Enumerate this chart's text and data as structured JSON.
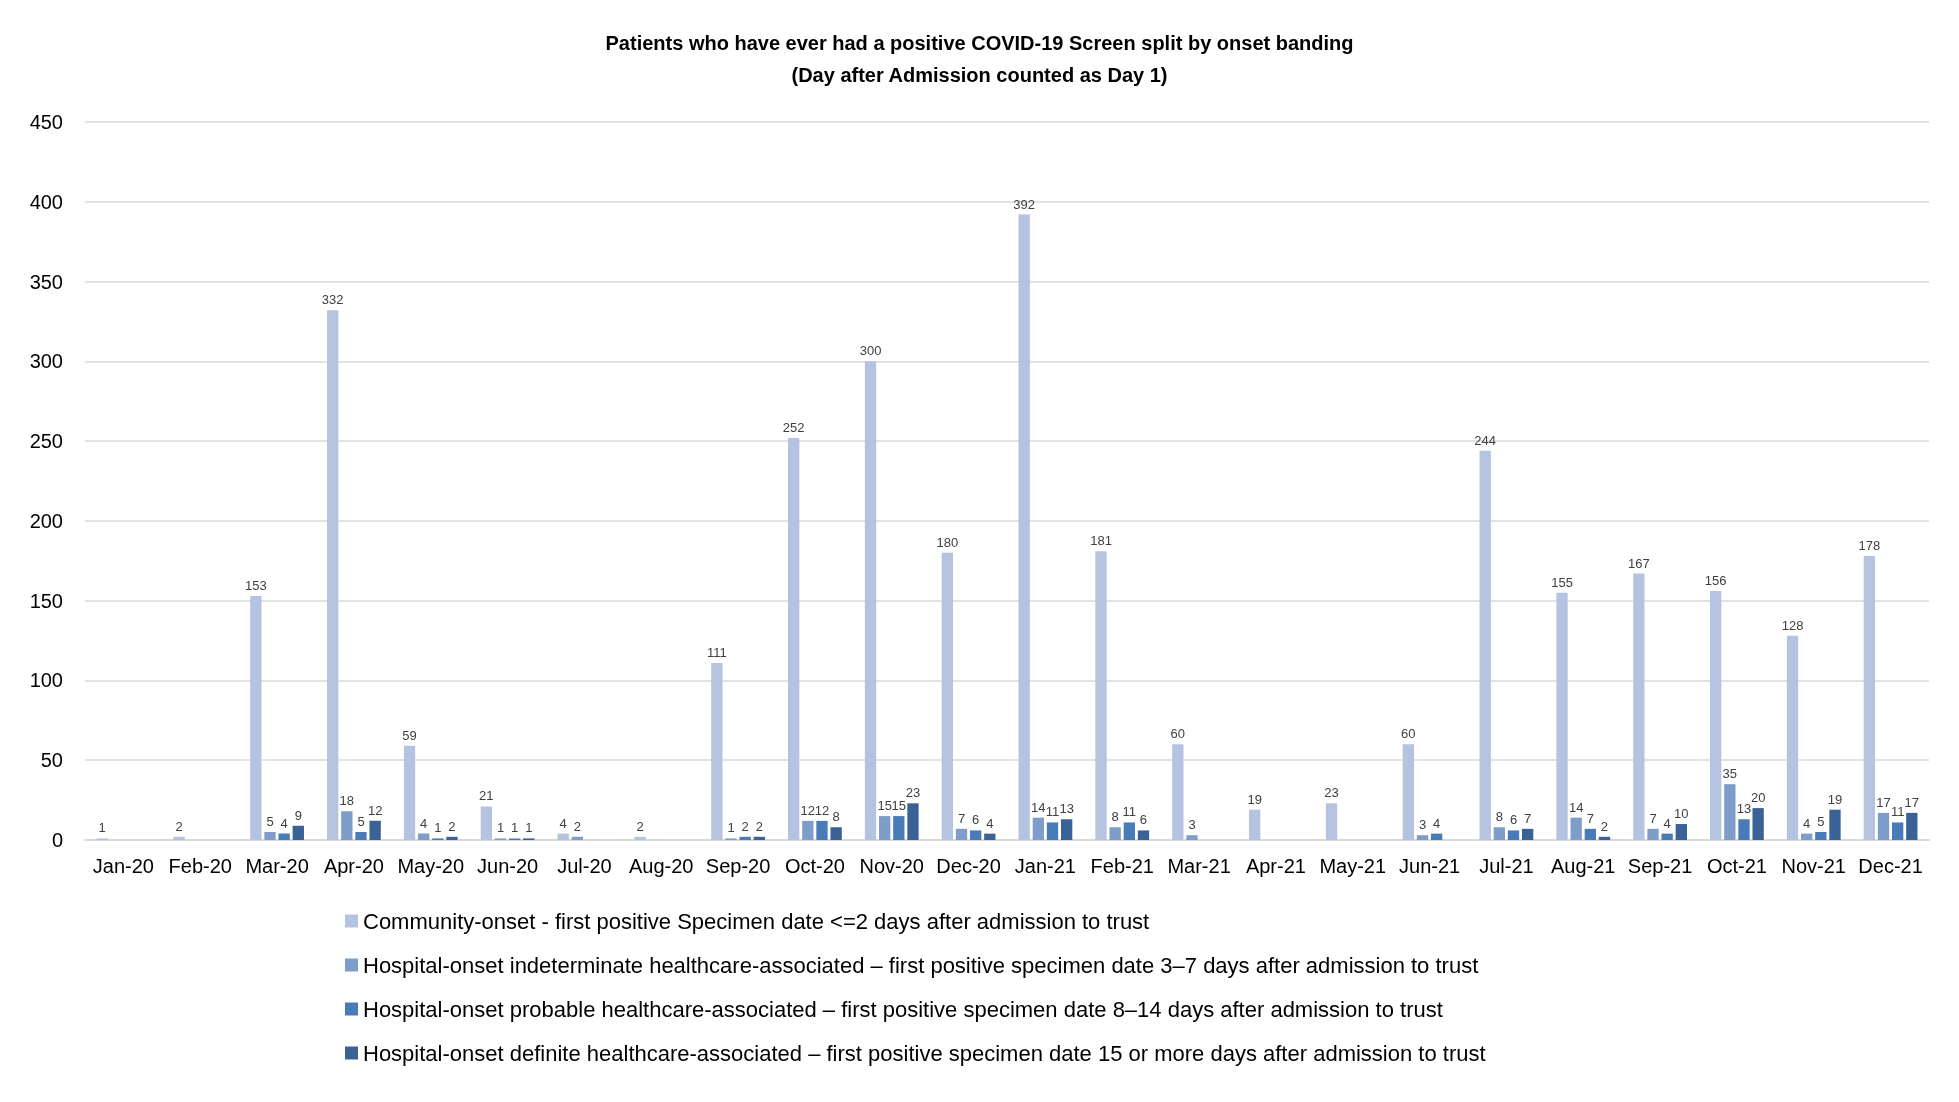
{
  "chart_data": {
    "type": "bar",
    "title": "Patients who have ever had a positive COVID-19 Screen split by onset banding\n(Day after Admission counted as Day 1)",
    "categories": [
      "Jan-20",
      "Feb-20",
      "Mar-20",
      "Apr-20",
      "May-20",
      "Jun-20",
      "Jul-20",
      "Aug-20",
      "Sep-20",
      "Oct-20",
      "Nov-20",
      "Dec-20",
      "Jan-21",
      "Feb-21",
      "Mar-21",
      "Apr-21",
      "May-21",
      "Jun-21",
      "Jul-21",
      "Aug-21",
      "Sep-21",
      "Oct-21",
      "Nov-21",
      "Dec-21"
    ],
    "series": [
      {
        "name": "Community-onset - first positive Specimen date <=2 days after admission to trust",
        "color": "#b4c4e0",
        "values": [
          1,
          2,
          153,
          332,
          59,
          21,
          4,
          2,
          111,
          252,
          300,
          180,
          392,
          181,
          60,
          19,
          23,
          60,
          244,
          155,
          167,
          156,
          128,
          178
        ]
      },
      {
        "name": "Hospital-onset indeterminate healthcare-associated – first positive specimen date 3–7 days after admission to trust",
        "color": "#7f9dca",
        "values": [
          null,
          null,
          5,
          18,
          4,
          1,
          2,
          null,
          1,
          12,
          15,
          7,
          14,
          8,
          3,
          null,
          null,
          3,
          8,
          14,
          7,
          35,
          4,
          17
        ]
      },
      {
        "name": "Hospital-onset probable healthcare-associated – first positive specimen date 8–14 days after admission to trust",
        "color": "#4a7bb9",
        "values": [
          null,
          null,
          4,
          5,
          1,
          1,
          null,
          null,
          2,
          12,
          15,
          6,
          11,
          11,
          null,
          null,
          null,
          4,
          6,
          7,
          4,
          13,
          5,
          11
        ]
      },
      {
        "name": "Hospital-onset definite healthcare-associated – first positive specimen date 15 or more days after admission to trust",
        "color": "#3a6296",
        "values": [
          null,
          null,
          9,
          12,
          2,
          1,
          null,
          null,
          2,
          8,
          23,
          4,
          13,
          6,
          null,
          null,
          null,
          null,
          7,
          2,
          10,
          20,
          19,
          17
        ]
      }
    ],
    "ylim": [
      0,
      450
    ],
    "yticks": [
      0,
      50,
      100,
      150,
      200,
      250,
      300,
      350,
      400,
      450
    ],
    "grid": "y",
    "legend": "bottom",
    "data_labels": true
  }
}
